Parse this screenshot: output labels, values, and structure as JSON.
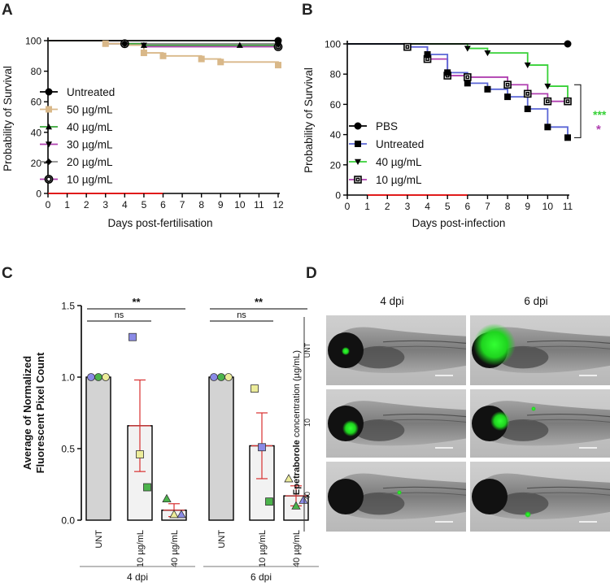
{
  "panels": {
    "a": "A",
    "b": "B",
    "c": "C",
    "d": "D"
  },
  "chart_data": [
    {
      "id": "A",
      "type": "line",
      "subtype": "kaplan-meier",
      "xlabel": "Days post-fertilisation",
      "ylabel": "Probability of Survival",
      "xlim": [
        0,
        12
      ],
      "ylim": [
        0,
        100
      ],
      "xticks": [
        "0",
        "1",
        "2",
        "3",
        "4",
        "5",
        "6",
        "7",
        "8",
        "9",
        "10",
        "11",
        "12"
      ],
      "yticks": [
        "0",
        "20",
        "40",
        "60",
        "80",
        "100"
      ],
      "legend_position": "bottom-left",
      "red_segment": [
        0,
        6
      ],
      "series": [
        {
          "name": "Untreated",
          "color": "#000000",
          "marker": "circle",
          "x": [
            0,
            12
          ],
          "y": [
            100,
            100
          ],
          "marker_x": [
            12
          ],
          "marker_y": [
            100
          ]
        },
        {
          "name": "50 µg/mL",
          "color": "#d9b889",
          "marker": "square",
          "x": [
            0,
            3,
            4,
            5,
            6,
            8,
            9,
            12
          ],
          "y": [
            100,
            98,
            97,
            92,
            90,
            88,
            86,
            84
          ],
          "marker_x": [
            3,
            5,
            6,
            8,
            9,
            12
          ],
          "marker_y": [
            98,
            92,
            90,
            88,
            86,
            84
          ]
        },
        {
          "name": "40 µg/mL",
          "color": "#37a637",
          "marker": "triangle-up",
          "x": [
            0,
            3,
            5,
            12
          ],
          "y": [
            100,
            98,
            97,
            97
          ],
          "marker_x": [
            3,
            5,
            10
          ],
          "marker_y": [
            98,
            97,
            97
          ]
        },
        {
          "name": "30 µg/mL",
          "color": "#b040b0",
          "marker": "triangle-down",
          "x": [
            0,
            3,
            5,
            12
          ],
          "y": [
            100,
            98,
            97,
            97
          ],
          "marker_x": [
            3,
            5,
            12
          ],
          "marker_y": [
            98,
            97,
            97
          ]
        },
        {
          "name": "20 µg/mL",
          "color": "#8c8c8c",
          "marker": "diamond",
          "x": [
            0,
            4,
            12
          ],
          "y": [
            100,
            98,
            98
          ],
          "marker_x": [
            4,
            12
          ],
          "marker_y": [
            98,
            98
          ]
        },
        {
          "name": "10 µg/mL",
          "color": "#b040b0",
          "marker": "circle-open",
          "x": [
            0,
            3,
            5,
            12
          ],
          "y": [
            100,
            98,
            96,
            96
          ],
          "marker_x": [
            4,
            12
          ],
          "marker_y": [
            98,
            96
          ]
        }
      ]
    },
    {
      "id": "B",
      "type": "line",
      "subtype": "kaplan-meier",
      "xlabel": "Days post-infection",
      "ylabel": "Probability of Survival",
      "xlim": [
        0,
        11
      ],
      "ylim": [
        0,
        100
      ],
      "xticks": [
        "0",
        "1",
        "2",
        "3",
        "4",
        "5",
        "6",
        "7",
        "8",
        "9",
        "10",
        "11"
      ],
      "yticks": [
        "0",
        "20",
        "40",
        "60",
        "80",
        "100"
      ],
      "legend_position": "bottom-left",
      "red_segment": [
        1,
        6
      ],
      "significance": [
        {
          "text": "***",
          "color": "#37d137"
        },
        {
          "text": "*",
          "color": "#b040b0"
        }
      ],
      "series": [
        {
          "name": "PBS",
          "color": "#000000",
          "marker": "circle",
          "x": [
            0,
            11
          ],
          "y": [
            100,
            100
          ],
          "marker_x": [
            11
          ],
          "marker_y": [
            100
          ]
        },
        {
          "name": "Untreated",
          "color": "#5a66d6",
          "marker": "square",
          "x": [
            0,
            3,
            4,
            5,
            6,
            7,
            8,
            9,
            10,
            11
          ],
          "y": [
            100,
            98,
            93,
            81,
            74,
            70,
            65,
            57,
            45,
            38
          ],
          "marker_x": [
            4,
            5,
            6,
            7,
            8,
            9,
            10,
            11
          ],
          "marker_y": [
            93,
            81,
            74,
            70,
            65,
            57,
            45,
            38
          ]
        },
        {
          "name": "40 µg/mL",
          "color": "#37d137",
          "marker": "triangle-down",
          "x": [
            0,
            6,
            7,
            9,
            10,
            11
          ],
          "y": [
            100,
            97,
            94,
            86,
            72,
            62
          ],
          "marker_x": [
            6,
            7,
            9,
            10
          ],
          "marker_y": [
            97,
            94,
            86,
            72
          ]
        },
        {
          "name": "10 µg/mL",
          "color": "#b040b0",
          "marker": "square-open",
          "x": [
            0,
            3,
            4,
            5,
            6,
            8,
            9,
            10,
            11
          ],
          "y": [
            100,
            98,
            90,
            79,
            78,
            73,
            67,
            62,
            62
          ],
          "marker_x": [
            3,
            4,
            5,
            6,
            8,
            9,
            10,
            11
          ],
          "marker_y": [
            98,
            90,
            79,
            78,
            73,
            67,
            62,
            62
          ]
        }
      ]
    },
    {
      "id": "C",
      "type": "bar",
      "ylabel_line1": "Average of Normalized",
      "ylabel_line2": "Fluorescent Pixel Count",
      "ylim": [
        0,
        1.5
      ],
      "yticks": [
        "0.0",
        "0.5",
        "1.0",
        "1.5"
      ],
      "categories": [
        "UNT",
        "10 µg/mL",
        "40 µg/mL",
        "UNT",
        "10 µg/mL",
        "40 µg/mL"
      ],
      "groups": [
        "4 dpi",
        "6 dpi"
      ],
      "values": [
        1.0,
        0.66,
        0.07,
        1.0,
        0.52,
        0.17
      ],
      "errors": [
        0,
        0.32,
        0.045,
        0,
        0.23,
        0.07
      ],
      "bar_colors": [
        "#d3d3d3",
        "#f2f2f2",
        "#f2f2f2",
        "#d3d3d3",
        "#f2f2f2",
        "#f2f2f2"
      ],
      "points": [
        {
          "bar": 0,
          "shape": "circle",
          "values": [
            1.0,
            1.0,
            1.0
          ],
          "colors": [
            "#8a8ae6",
            "#4bb34b",
            "#ecec9a"
          ]
        },
        {
          "bar": 1,
          "shape": "square",
          "values": [
            1.28,
            0.46,
            0.23
          ],
          "colors": [
            "#8a8ae6",
            "#ecec9a",
            "#4bb34b"
          ]
        },
        {
          "bar": 2,
          "shape": "triangle",
          "values": [
            0.15,
            0.04,
            0.04
          ],
          "colors": [
            "#4bb34b",
            "#ecec9a",
            "#8a8ae6"
          ]
        },
        {
          "bar": 3,
          "shape": "circle",
          "values": [
            1.0,
            1.0,
            1.0
          ],
          "colors": [
            "#8a8ae6",
            "#4bb34b",
            "#ecec9a"
          ]
        },
        {
          "bar": 4,
          "shape": "square",
          "values": [
            0.92,
            0.51,
            0.13
          ],
          "colors": [
            "#ecec9a",
            "#8a8ae6",
            "#4bb34b"
          ]
        },
        {
          "bar": 5,
          "shape": "triangle",
          "values": [
            0.29,
            0.1,
            0.14
          ],
          "colors": [
            "#ecec9a",
            "#4bb34b",
            "#8a8ae6"
          ]
        }
      ],
      "comparisons": [
        {
          "from": 0,
          "to": 2,
          "label": "**"
        },
        {
          "from": 0,
          "to": 1,
          "label": "ns"
        },
        {
          "from": 3,
          "to": 5,
          "label": "**"
        },
        {
          "from": 3,
          "to": 4,
          "label": "ns"
        }
      ]
    }
  ],
  "panel_d": {
    "col_labels": [
      "4 dpi",
      "6 dpi"
    ],
    "row_labels": [
      "UNT",
      "10",
      "40"
    ],
    "axis_label_bold": "Epetraborole",
    "axis_label_rest": " concentration (µg/mL)"
  }
}
